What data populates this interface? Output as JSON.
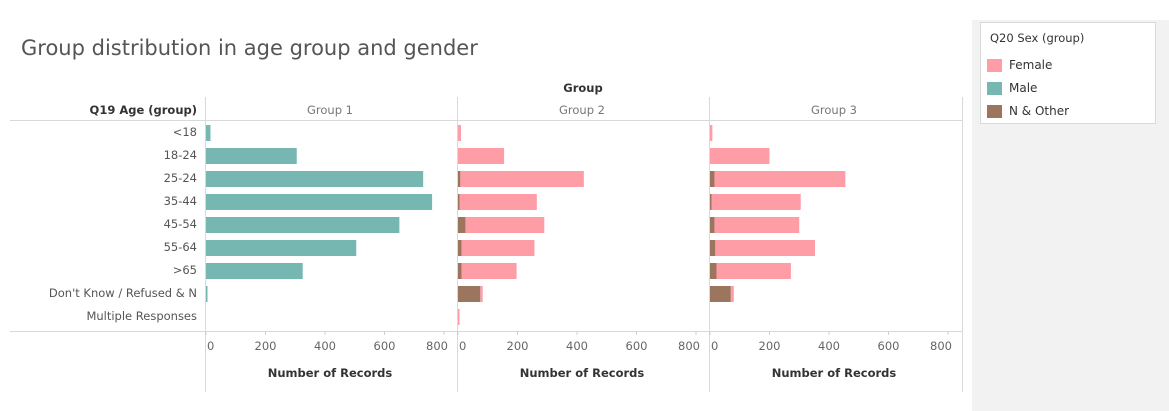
{
  "chart_data": {
    "type": "bar",
    "orientation": "horizontal",
    "stacked": true,
    "title": "Group distribution in age group and gender",
    "column_header": "Group",
    "row_header": "Q19 Age (group)",
    "xlabel": "Number of Records",
    "xlim": [
      0,
      800
    ],
    "xticks": [
      "0",
      "200",
      "400",
      "600",
      "800"
    ],
    "grid": false,
    "legend": {
      "title": "Q20 Sex (group)",
      "placement": "top-right",
      "items": [
        {
          "label": "Female",
          "color": "#ff9da7"
        },
        {
          "label": "Male",
          "color": "#76b7b2"
        },
        {
          "label": "N & Other",
          "color": "#9c755f"
        }
      ]
    },
    "categories": [
      "<18",
      "18-24",
      "25-24",
      "35-44",
      "45-54",
      "55-64",
      ">65",
      "Don't Know / Refused & N",
      "Multiple Responses"
    ],
    "panels": [
      {
        "name": "Group 1",
        "series": [
          {
            "name": "N & Other",
            "values": [
              0,
              0,
              0,
              0,
              0,
              0,
              0,
              0,
              0
            ]
          },
          {
            "name": "Male",
            "values": [
              15,
              305,
              730,
              760,
              650,
              505,
              325,
              5,
              0
            ]
          },
          {
            "name": "Female",
            "values": [
              0,
              0,
              0,
              0,
              0,
              0,
              0,
              0,
              0
            ]
          }
        ]
      },
      {
        "name": "Group 2",
        "series": [
          {
            "name": "N & Other",
            "values": [
              0,
              0,
              8,
              5,
              25,
              12,
              12,
              75,
              0
            ]
          },
          {
            "name": "Male",
            "values": [
              0,
              0,
              0,
              0,
              0,
              0,
              0,
              0,
              0
            ]
          },
          {
            "name": "Female",
            "values": [
              10,
              155,
              415,
              260,
              265,
              245,
              185,
              8,
              3
            ]
          }
        ]
      },
      {
        "name": "Group 3",
        "series": [
          {
            "name": "N & Other",
            "values": [
              0,
              0,
              15,
              5,
              15,
              18,
              22,
              70,
              0
            ]
          },
          {
            "name": "Male",
            "values": [
              0,
              0,
              0,
              0,
              0,
              0,
              0,
              0,
              0
            ]
          },
          {
            "name": "Female",
            "values": [
              8,
              200,
              440,
              300,
              285,
              335,
              250,
              10,
              0
            ]
          }
        ]
      }
    ]
  }
}
